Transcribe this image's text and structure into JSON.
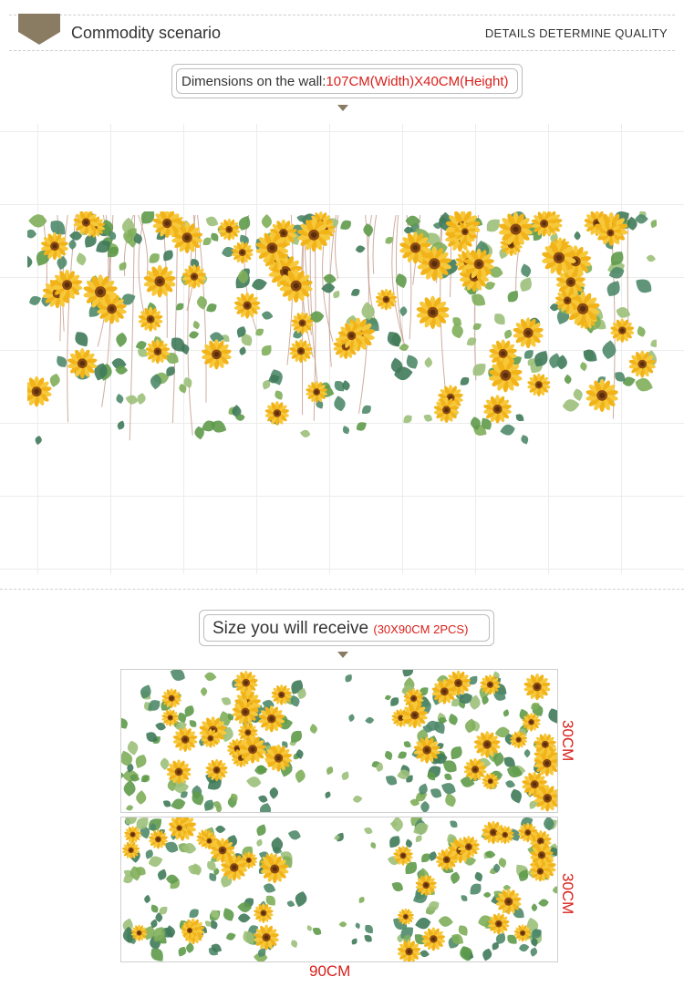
{
  "header": {
    "title": "Commodity scenario",
    "tagline": "DETAILS DETERMINE QUALITY"
  },
  "wall_section": {
    "label_prefix": "Dimensions on the wall:",
    "label_value": "107CM(Width)X40CM(Height)"
  },
  "receive_section": {
    "label": "Size you will receive",
    "label_detail": "(30X90CM  2PCS)",
    "panel_height_label_1": "30CM",
    "panel_height_label_2": "30CM",
    "panel_width_label": "90CM"
  },
  "colors": {
    "accent_red": "#d8201b",
    "tab_brown": "#8a7b63",
    "sunflower_petal": "#f2b319",
    "sunflower_center": "#8a4a14",
    "leaf_green": "#5e9a4a"
  }
}
